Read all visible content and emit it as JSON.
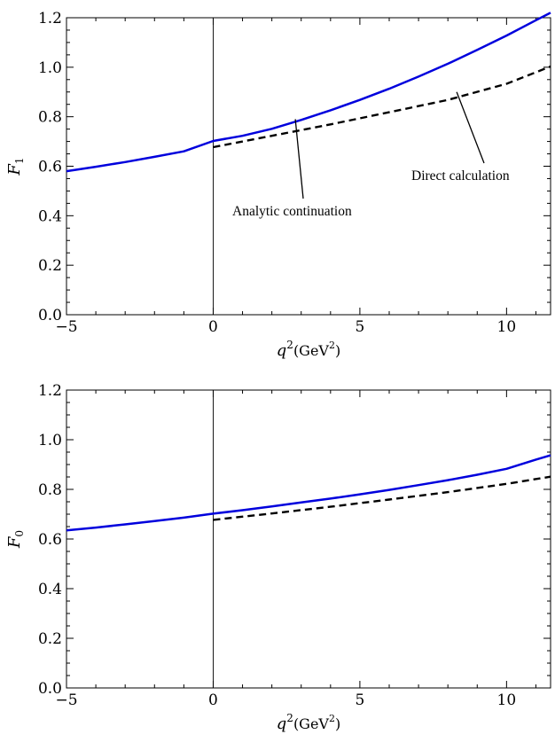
{
  "chart_data": [
    {
      "type": "line",
      "ylabel_main": "F",
      "ylabel_sub": "1",
      "xlabel_main": "q",
      "xlabel_sup": "2",
      "xlabel_unit_open": "(GeV",
      "xlabel_unit_sup": "2",
      "xlabel_unit_close": ")",
      "xlim": [
        -5,
        11.5
      ],
      "ylim": [
        0,
        1.2
      ],
      "xticks": [
        -5,
        0,
        5,
        10
      ],
      "xtick_labels": [
        "−5",
        "0",
        "5",
        "10"
      ],
      "yticks": [
        0,
        0.2,
        0.4,
        0.6,
        0.8,
        1.0,
        1.2
      ],
      "ytick_labels": [
        "0.0",
        "0.2",
        "0.4",
        "0.6",
        "0.8",
        "1.0",
        "1.2"
      ],
      "series": [
        {
          "color": "#0000dd",
          "style": "solid",
          "x": [
            -5,
            -4,
            -3,
            -2,
            -1,
            0,
            1,
            2,
            3,
            4,
            5,
            6,
            7,
            8,
            9,
            10,
            11,
            11.5
          ],
          "y": [
            0.58,
            0.598,
            0.617,
            0.638,
            0.66,
            0.702,
            0.723,
            0.751,
            0.787,
            0.826,
            0.868,
            0.913,
            0.962,
            1.014,
            1.07,
            1.128,
            1.19,
            1.22
          ]
        },
        {
          "color": "#000000",
          "style": "dashed",
          "x": [
            0,
            2,
            4,
            6,
            8,
            10,
            11.5
          ],
          "y": [
            0.677,
            0.723,
            0.769,
            0.818,
            0.868,
            0.933,
            1.003
          ]
        }
      ],
      "annotations": [
        {
          "text": "Analytic continuation",
          "point": [
            2.8,
            0.79
          ]
        },
        {
          "text": "Direct calculation",
          "point": [
            8.3,
            0.9
          ]
        }
      ],
      "grid": false,
      "vline_x": 0
    },
    {
      "type": "line",
      "ylabel_main": "F",
      "ylabel_sub": "0",
      "xlabel_main": "q",
      "xlabel_sup": "2",
      "xlabel_unit_open": "(GeV",
      "xlabel_unit_sup": "2",
      "xlabel_unit_close": ")",
      "xlim": [
        -5,
        11.5
      ],
      "ylim": [
        0,
        1.2
      ],
      "xticks": [
        -5,
        0,
        5,
        10
      ],
      "xtick_labels": [
        "−5",
        "0",
        "5",
        "10"
      ],
      "yticks": [
        0,
        0.2,
        0.4,
        0.6,
        0.8,
        1.0,
        1.2
      ],
      "ytick_labels": [
        "0.0",
        "0.2",
        "0.4",
        "0.6",
        "0.8",
        "1.0",
        "1.2"
      ],
      "series": [
        {
          "color": "#0000dd",
          "style": "solid",
          "x": [
            -5,
            -4,
            -3,
            -2,
            -1,
            0,
            1,
            2,
            3,
            4,
            5,
            6,
            7,
            8,
            9,
            10,
            11,
            11.5
          ],
          "y": [
            0.635,
            0.646,
            0.659,
            0.672,
            0.686,
            0.702,
            0.716,
            0.731,
            0.747,
            0.763,
            0.78,
            0.798,
            0.817,
            0.837,
            0.859,
            0.883,
            0.92,
            0.937
          ]
        },
        {
          "color": "#000000",
          "style": "dashed",
          "x": [
            0,
            2,
            4,
            6,
            8,
            10,
            11.5
          ],
          "y": [
            0.677,
            0.703,
            0.73,
            0.759,
            0.789,
            0.822,
            0.851
          ]
        }
      ],
      "annotations": [],
      "grid": false,
      "vline_x": 0
    }
  ]
}
